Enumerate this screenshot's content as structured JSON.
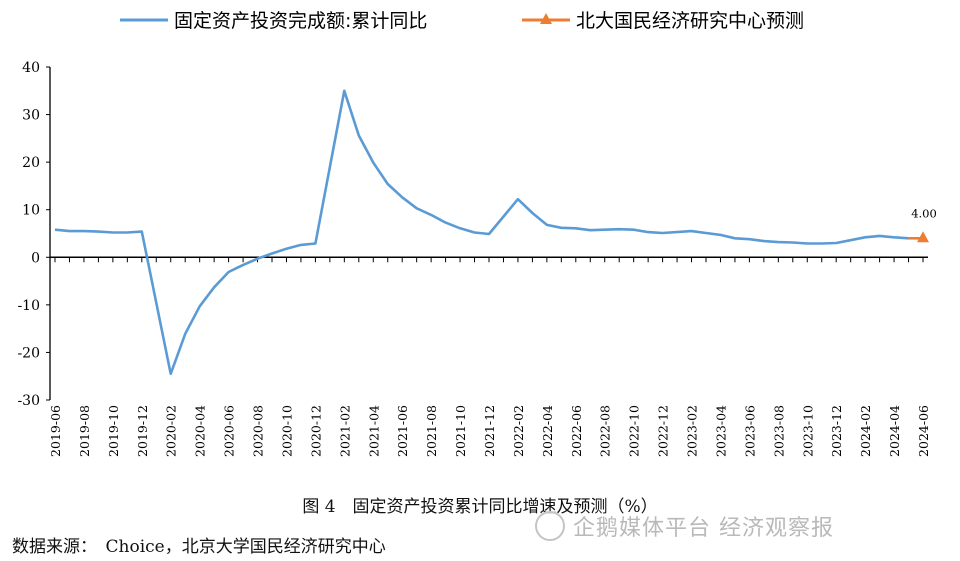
{
  "chart_data": {
    "type": "line",
    "series": [
      {
        "name": "固定资产投资完成额:累计同比",
        "color": "#5B9BD5",
        "x": [
          "2019-06",
          "2019-07",
          "2019-08",
          "2019-09",
          "2019-10",
          "2019-11",
          "2019-12",
          "2020-02",
          "2020-03",
          "2020-04",
          "2020-05",
          "2020-06",
          "2020-07",
          "2020-08",
          "2020-09",
          "2020-10",
          "2020-11",
          "2020-12",
          "2021-02",
          "2021-03",
          "2021-04",
          "2021-05",
          "2021-06",
          "2021-07",
          "2021-08",
          "2021-09",
          "2021-10",
          "2021-11",
          "2021-12",
          "2022-02",
          "2022-03",
          "2022-04",
          "2022-05",
          "2022-06",
          "2022-07",
          "2022-08",
          "2022-09",
          "2022-10",
          "2022-11",
          "2022-12",
          "2023-02",
          "2023-03",
          "2023-04",
          "2023-05",
          "2023-06",
          "2023-07",
          "2023-08",
          "2023-09",
          "2023-10",
          "2023-11",
          "2023-12",
          "2024-02",
          "2024-03",
          "2024-04",
          "2024-05"
        ],
        "values": [
          5.8,
          5.5,
          5.5,
          5.4,
          5.2,
          5.2,
          5.4,
          -24.5,
          -16.1,
          -10.3,
          -6.3,
          -3.1,
          -1.6,
          -0.3,
          0.8,
          1.8,
          2.6,
          2.9,
          35.0,
          25.6,
          19.9,
          15.4,
          12.6,
          10.3,
          8.9,
          7.3,
          6.1,
          5.2,
          4.9,
          12.2,
          9.3,
          6.8,
          6.2,
          6.1,
          5.7,
          5.8,
          5.9,
          5.8,
          5.3,
          5.1,
          5.5,
          5.1,
          4.7,
          4.0,
          3.8,
          3.4,
          3.2,
          3.1,
          2.9,
          2.9,
          3.0,
          4.2,
          4.5,
          4.2,
          4.0
        ]
      },
      {
        "name": "北大国民经济研究中心预测",
        "color": "#ED7D31",
        "x": [
          "2024-05",
          "2024-06"
        ],
        "values": [
          4.0,
          4.0
        ],
        "point_label": "4.00"
      }
    ],
    "ylim": [
      -30,
      40
    ],
    "yticks": [
      "40",
      "30",
      "20",
      "10",
      "0",
      "-10",
      "-20",
      "-30"
    ],
    "xtick_labels": [
      "2019-06",
      "2019-08",
      "2019-10",
      "2019-12",
      "2020-02",
      "2020-04",
      "2020-06",
      "2020-08",
      "2020-10",
      "2020-12",
      "2021-02",
      "2021-04",
      "2021-06",
      "2021-08",
      "2021-10",
      "2021-12",
      "2022-02",
      "2022-04",
      "2022-06",
      "2022-08",
      "2022-10",
      "2022-12",
      "2023-02",
      "2023-04",
      "2023-06",
      "2023-08",
      "2023-10",
      "2023-12",
      "2024-02",
      "2024-04",
      "2024-06"
    ],
    "legend_position": "top"
  },
  "figure": {
    "caption": "图 4　固定资产投资累计同比增速及预测（%）",
    "source": "数据来源：　Choice，北京大学国民经济研究中心"
  },
  "watermark": "企鹅媒体平台 经济观察报"
}
